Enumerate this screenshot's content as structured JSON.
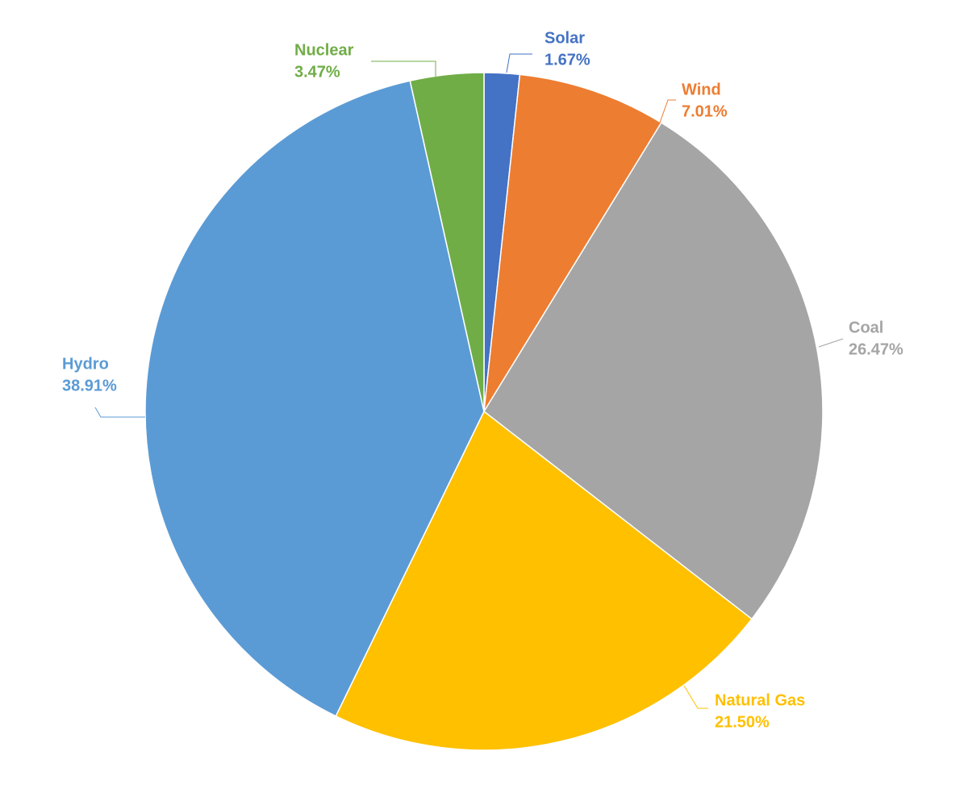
{
  "chart_data": {
    "type": "pie",
    "categories": [
      "Solar",
      "Wind",
      "Coal",
      "Natural Gas",
      "Hydro",
      "Nuclear"
    ],
    "values": [
      1.67,
      7.01,
      26.47,
      21.5,
      38.91,
      3.47
    ],
    "value_labels": [
      "1.67%",
      "7.01%",
      "26.47%",
      "21.50%",
      "38.91%",
      "3.47%"
    ],
    "colors": [
      "#4472c4",
      "#ed7d31",
      "#a5a5a5",
      "#ffc000",
      "#5b9bd5",
      "#70ad47"
    ]
  }
}
